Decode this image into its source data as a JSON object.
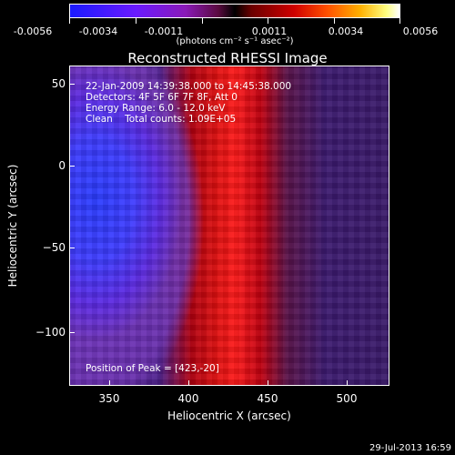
{
  "colorbar": {
    "labels": [
      "-0.0056",
      "-0.0034",
      "-0.0011",
      "0.0011",
      "0.0034",
      "0.0056"
    ],
    "units": "(photons cm⁻² s⁻¹ asec⁻²)"
  },
  "title": "Reconstructed RHESSI Image",
  "annotations": {
    "time_range": "22-Jan-2009 14:39:38.000 to 14:45:38.000",
    "detectors": "Detectors: 4F 5F 6F 7F 8F, Att 0",
    "energy_range": "Energy Range: 6.0 - 12.0 keV",
    "clean_counts": "Clean    Total counts: 1.09E+05",
    "peak_position": "Position of Peak = [423,-20]"
  },
  "axes": {
    "x_title": "Heliocentric X (arcsec)",
    "y_title": "Heliocentric Y (arcsec)",
    "x_ticks": [
      "350",
      "400",
      "450",
      "500"
    ],
    "y_ticks": [
      "50",
      "0",
      "−50",
      "−100"
    ]
  },
  "timestamp": "29-Jul-2013 16:59",
  "colors": {
    "negative": "#1a1aff",
    "positive": "#ff1a1a",
    "background": "#000000"
  }
}
